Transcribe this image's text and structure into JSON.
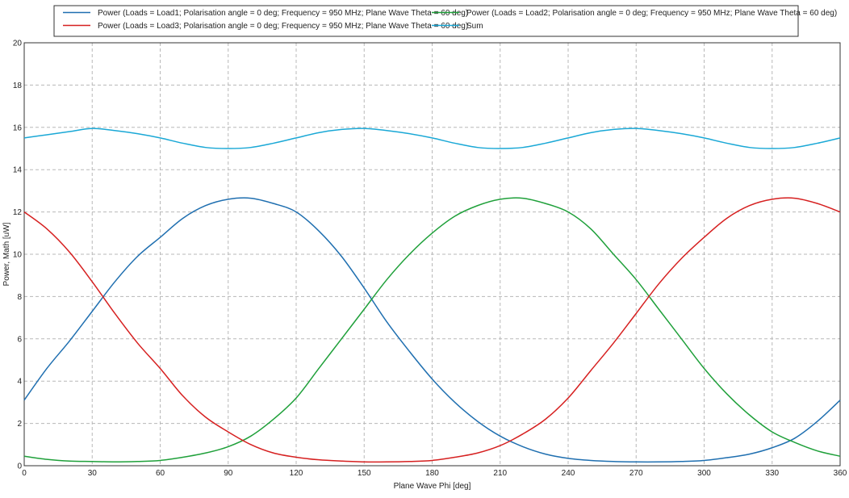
{
  "chart_data": {
    "type": "line",
    "xlabel": "Plane Wave Phi [deg]",
    "ylabel": "Power, Math [uW]",
    "xlim": [
      0,
      360
    ],
    "ylim": [
      0,
      20
    ],
    "xticks": [
      0,
      30,
      60,
      90,
      120,
      150,
      180,
      210,
      240,
      270,
      300,
      330,
      360
    ],
    "yticks": [
      0,
      2,
      4,
      6,
      8,
      10,
      12,
      14,
      16,
      18,
      20
    ],
    "grid": true,
    "legend_position": "top",
    "x": [
      0,
      10,
      20,
      30,
      40,
      50,
      60,
      70,
      80,
      90,
      100,
      110,
      120,
      130,
      140,
      150,
      160,
      170,
      180,
      190,
      200,
      210,
      220,
      230,
      240,
      250,
      260,
      270,
      280,
      290,
      300,
      310,
      320,
      330,
      340,
      350,
      360
    ],
    "series": [
      {
        "name": "Power (Loads = Load1; Polarisation angle = 0 deg; Frequency = 950 MHz; Plane Wave Theta = 60 deg)",
        "color": "#1f6fb0",
        "values": [
          3.1,
          4.6,
          5.9,
          7.3,
          8.7,
          9.9,
          10.8,
          11.7,
          12.3,
          12.6,
          12.65,
          12.4,
          12.0,
          11.1,
          9.9,
          8.4,
          6.8,
          5.4,
          4.1,
          3.0,
          2.1,
          1.4,
          0.9,
          0.55,
          0.35,
          0.25,
          0.2,
          0.18,
          0.18,
          0.2,
          0.25,
          0.38,
          0.55,
          0.85,
          1.3,
          2.1,
          3.1
        ]
      },
      {
        "name": "Power (Loads = Load2; Polarisation angle = 0 deg; Frequency = 950 MHz; Plane Wave Theta = 60 deg)",
        "color": "#1fa03a",
        "values": [
          0.45,
          0.3,
          0.22,
          0.2,
          0.18,
          0.2,
          0.25,
          0.4,
          0.6,
          0.9,
          1.4,
          2.2,
          3.2,
          4.6,
          6.0,
          7.4,
          8.8,
          10.0,
          11.0,
          11.8,
          12.3,
          12.6,
          12.65,
          12.4,
          12.0,
          11.2,
          10.0,
          8.8,
          7.4,
          6.0,
          4.6,
          3.4,
          2.4,
          1.6,
          1.1,
          0.7,
          0.45
        ]
      },
      {
        "name": "Power (Loads = Load3; Polarisation angle = 0 deg; Frequency = 950 MHz; Plane Wave Theta = 60 deg)",
        "color": "#d62020",
        "values": [
          12.0,
          11.2,
          10.1,
          8.7,
          7.2,
          5.8,
          4.6,
          3.3,
          2.3,
          1.6,
          1.0,
          0.6,
          0.4,
          0.28,
          0.22,
          0.18,
          0.18,
          0.2,
          0.25,
          0.4,
          0.6,
          0.95,
          1.5,
          2.2,
          3.2,
          4.5,
          5.8,
          7.2,
          8.6,
          9.8,
          10.8,
          11.7,
          12.3,
          12.6,
          12.65,
          12.4,
          12.0
        ]
      },
      {
        "name": "Sum",
        "color": "#1aa8d6",
        "values": [
          15.5,
          15.65,
          15.8,
          15.95,
          15.85,
          15.7,
          15.5,
          15.25,
          15.05,
          15.0,
          15.05,
          15.25,
          15.5,
          15.75,
          15.9,
          15.95,
          15.85,
          15.7,
          15.5,
          15.25,
          15.05,
          15.0,
          15.05,
          15.25,
          15.5,
          15.75,
          15.9,
          15.95,
          15.85,
          15.7,
          15.5,
          15.25,
          15.05,
          15.0,
          15.05,
          15.25,
          15.5
        ]
      }
    ]
  }
}
